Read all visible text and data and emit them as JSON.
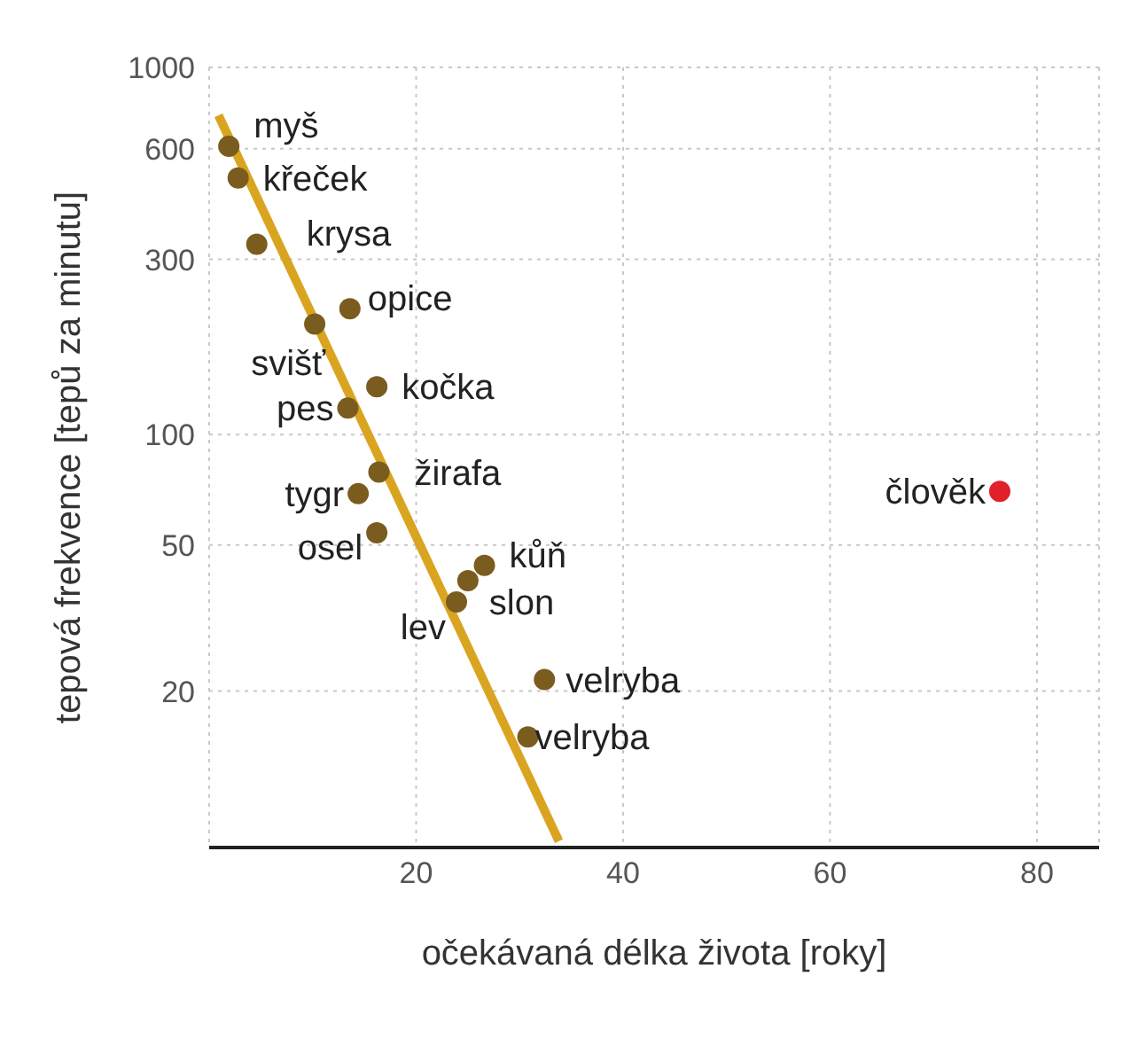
{
  "chart_data": {
    "type": "scatter",
    "xlabel": "očekávaná délka života [roky]",
    "ylabel": "tepová frekvence [tepů za minutu]",
    "log": "y",
    "xlim": [
      0,
      86
    ],
    "xticks": [
      20,
      40,
      60,
      80
    ],
    "ylim": [
      7.5,
      1000
    ],
    "yticks": [
      20,
      50,
      100,
      300,
      600,
      1000
    ],
    "grid": true,
    "legend": false,
    "series": [
      {
        "type": "line",
        "color": "#d9a520",
        "marker": "none",
        "x": [
          0.9,
          33.8
        ],
        "values": [
          740,
          7.8
        ]
      },
      {
        "color": "#7a5c1e",
        "marker": "circle",
        "x": [
          1.9,
          2.8,
          4.6,
          13.6,
          10.2,
          16.2,
          13.4,
          16.4,
          14.4,
          16.2,
          26.6,
          25,
          23.9,
          32.4,
          30.8
        ],
        "values": [
          610,
          500,
          330,
          220,
          200,
          135,
          118,
          79,
          69,
          54,
          44,
          40,
          35,
          21.5,
          15
        ]
      },
      {
        "color": "#e0202a",
        "marker": "circle",
        "x": [
          76.4
        ],
        "values": [
          70
        ]
      }
    ],
    "annotations": [
      {
        "text": "myš",
        "x": 1.9,
        "y": 610
      },
      {
        "text": "křeček",
        "x": 2.8,
        "y": 500
      },
      {
        "text": "krysa",
        "x": 4.6,
        "y": 330
      },
      {
        "text": "opice",
        "x": 13.6,
        "y": 220
      },
      {
        "text": "svišť",
        "x": 10.2,
        "y": 200
      },
      {
        "text": "kočka",
        "x": 16.2,
        "y": 135
      },
      {
        "text": "pes",
        "x": 13.4,
        "y": 118
      },
      {
        "text": "žirafa",
        "x": 16.4,
        "y": 79
      },
      {
        "text": "tygr",
        "x": 14.4,
        "y": 69
      },
      {
        "text": "osel",
        "x": 16.2,
        "y": 54
      },
      {
        "text": "kůň",
        "x": 26.6,
        "y": 44
      },
      {
        "text": "slon",
        "x": 25,
        "y": 40
      },
      {
        "text": "lev",
        "x": 23.9,
        "y": 35
      },
      {
        "text": "velryba",
        "x": 32.4,
        "y": 21.5
      },
      {
        "text": "velryba",
        "x": 30.8,
        "y": 15
      },
      {
        "text": "člověk",
        "x": 76.4,
        "y": 70
      }
    ]
  }
}
